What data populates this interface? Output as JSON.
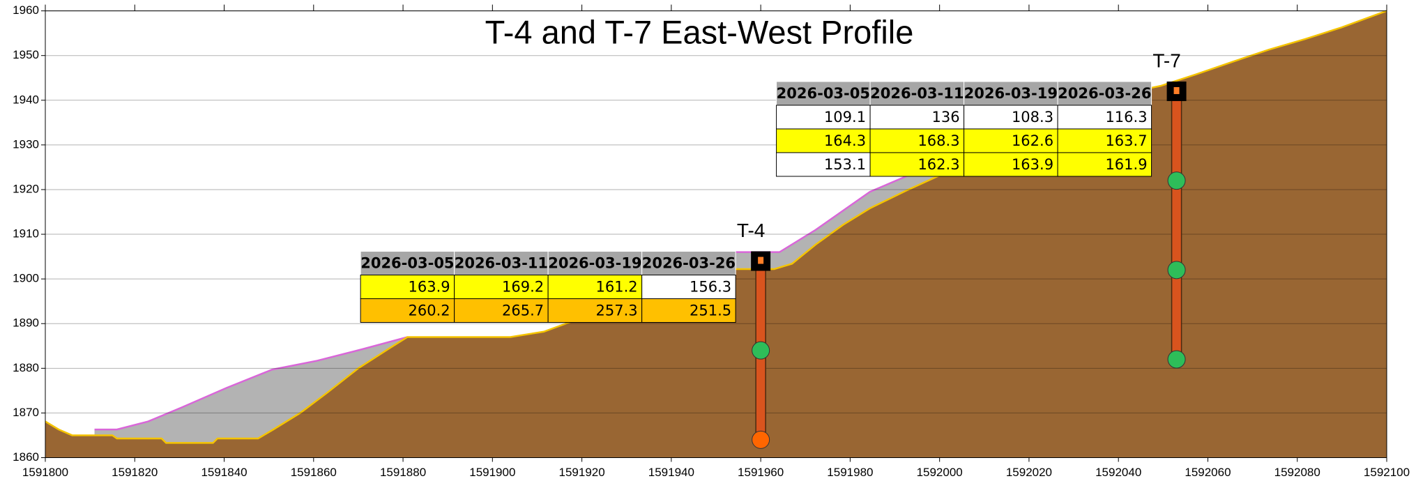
{
  "chart_data": {
    "type": "profile",
    "title": "T-4 and T-7 East-West Profile",
    "xlim": [
      1591800,
      1592100
    ],
    "xticks": [
      1591800,
      1591820,
      1591840,
      1591860,
      1591880,
      1591900,
      1591920,
      1591940,
      1591960,
      1591980,
      1592000,
      1592020,
      1592040,
      1592060,
      1592080,
      1592100
    ],
    "ylim": [
      1860,
      1960
    ],
    "yticks": [
      1860,
      1870,
      1880,
      1890,
      1900,
      1910,
      1920,
      1930,
      1940,
      1950,
      1960
    ],
    "grid": true,
    "series": [
      {
        "role": "upper",
        "color": "#d966d9",
        "fill": "#b3b3b3",
        "x": [
          1591811,
          1591816,
          1591823,
          1591830.4,
          1591840.5,
          1591850.7,
          1591860.8,
          1591871,
          1591881,
          null,
          1591934.8,
          1591964.2,
          1591972.3,
          1591984.4,
          1591992.6,
          1592012.8,
          1592035,
          1592041,
          1592047.4
        ],
        "values": [
          1866.3,
          1866.3,
          1868.1,
          1871.2,
          1875.6,
          1879.7,
          1881.7,
          1884.3,
          1887,
          null,
          1906,
          1906,
          1911,
          1919.5,
          1923,
          1931.5,
          1942.2,
          1943.8,
          1943.2
        ]
      },
      {
        "role": "ground",
        "color": "#f5c400",
        "fill": "#996633",
        "x": [
          1591800,
          1591803,
          1591806,
          1591815,
          1591816,
          1591826,
          1591827,
          1591837.5,
          1591838.5,
          1591847.6,
          1591851,
          1591857,
          1591863,
          1591870,
          1591877,
          1591881,
          1591904,
          1591911.5,
          1591921.6,
          1591931.8,
          1591935.8,
          1591939.9,
          1591944,
          1591963,
          1591967,
          1591972.3,
          1591978.4,
          1591984.4,
          1591992.6,
          1592012.8,
          1592033,
          1592041,
          1592049.4,
          1592057.4,
          1592065.5,
          1592073.6,
          1592081.8,
          1592089.9,
          1592100
        ],
        "values": [
          1868.1,
          1866.3,
          1865,
          1865,
          1864.3,
          1864.3,
          1863.3,
          1863.3,
          1864.3,
          1864.3,
          1866.3,
          1870,
          1874.5,
          1880,
          1884.5,
          1887,
          1887,
          1888.2,
          1891.9,
          1898.5,
          1901.4,
          1903.4,
          1902.2,
          1902.2,
          1903.4,
          1907.7,
          1912.1,
          1915.8,
          1919.8,
          1929,
          1939.1,
          1941.5,
          1943.2,
          1945.8,
          1948.6,
          1951.3,
          1953.7,
          1956.3,
          1960
        ]
      }
    ],
    "wells": [
      {
        "label": "T-4",
        "x": 1591960,
        "top": 1904,
        "sensors": [
          {
            "elev": 1884,
            "color": "#2ebd59"
          },
          {
            "elev": 1864,
            "color": "#ff6600"
          }
        ],
        "table": {
          "header": [
            "2026-03-05",
            "2026-03-11",
            "2026-03-19",
            "2026-03-26"
          ],
          "rows": [
            [
              "163.9",
              "169.2",
              "161.2",
              "156.3"
            ],
            [
              "260.2",
              "265.7",
              "257.3",
              "251.5"
            ]
          ],
          "cell_colors": [
            [
              "#ffff00",
              "#ffff00",
              "#ffff00",
              "#ffffff"
            ],
            [
              "#ffc000",
              "#ffc000",
              "#ffc000",
              "#ffc000"
            ]
          ]
        }
      },
      {
        "label": "T-7",
        "x": 1592053,
        "top": 1942,
        "sensors": [
          {
            "elev": 1922,
            "color": "#2ebd59"
          },
          {
            "elev": 1902,
            "color": "#2ebd59"
          },
          {
            "elev": 1882,
            "color": "#2ebd59"
          }
        ],
        "table": {
          "header": [
            "2026-03-05",
            "2026-03-11",
            "2026-03-19",
            "2026-03-26"
          ],
          "rows": [
            [
              "109.1",
              "136",
              "108.3",
              "116.3"
            ],
            [
              "164.3",
              "168.3",
              "162.6",
              "163.7"
            ],
            [
              "153.1",
              "162.3",
              "163.9",
              "161.9"
            ]
          ],
          "cell_colors": [
            [
              "#ffffff",
              "#ffffff",
              "#ffffff",
              "#ffffff"
            ],
            [
              "#ffff00",
              "#ffff00",
              "#ffff00",
              "#ffff00"
            ],
            [
              "#ffffff",
              "#ffff00",
              "#ffff00",
              "#ffff00"
            ]
          ]
        }
      }
    ]
  }
}
